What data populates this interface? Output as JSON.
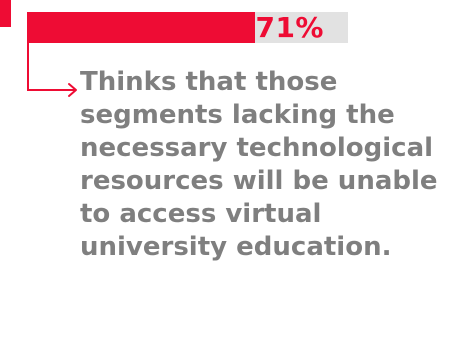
{
  "colors": {
    "accent": "#ee0c34",
    "track": "#e2e2e2",
    "text": "#7f7f7f"
  },
  "chart_data": {
    "type": "bar",
    "orientation": "horizontal",
    "values": [
      71
    ],
    "value_labels": [
      "71%"
    ],
    "xlim": [
      0,
      100
    ],
    "grid": false
  },
  "statement": "Thinks that those segments lacking the necessary technological resources will be unable to access virtual university education."
}
